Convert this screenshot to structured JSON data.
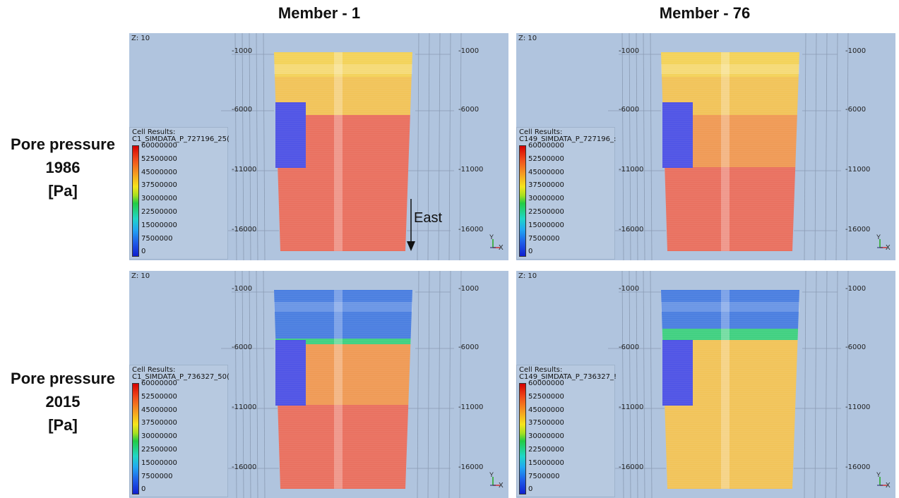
{
  "columns": [
    "Member - 1",
    "Member - 76"
  ],
  "rows": [
    {
      "line1": "Pore pressure",
      "line2": "1986",
      "line3": "[Pa]"
    },
    {
      "line1": "Pore pressure",
      "line2": "2015",
      "line3": "[Pa]"
    }
  ],
  "panels": [
    {
      "z_label": "Z: 10",
      "legend_title_1": "Cell Results:",
      "legend_title_2": "C1_SIMDATA_P_727196_25(",
      "scenario": "p1986_m1"
    },
    {
      "z_label": "Z: 10",
      "legend_title_1": "Cell Results:",
      "legend_title_2": "C149_SIMDATA_P_727196_:",
      "scenario": "p1986_m76"
    },
    {
      "z_label": "Z: 10",
      "legend_title_1": "Cell Results:",
      "legend_title_2": "C1_SIMDATA_P_736327_50(",
      "scenario": "p2015_m1"
    },
    {
      "z_label": "Z: 10",
      "legend_title_1": "Cell Results:",
      "legend_title_2": "C149_SIMDATA_P_736327_!",
      "scenario": "p2015_m76"
    }
  ],
  "legend_ticks": [
    "60000000",
    "52500000",
    "45000000",
    "37500000",
    "30000000",
    "22500000",
    "15000000",
    "7500000",
    "0"
  ],
  "axis_ticks": [
    "-1000",
    "-6000",
    "-11000",
    "-16000"
  ],
  "triad": {
    "x": "X",
    "y": "Y"
  },
  "annotation": {
    "east_label": "East"
  },
  "colors": {
    "panel_bg": "#b0c4de",
    "grid": "#8a9bb3",
    "high": "#e9705f",
    "mid_orange": "#ef9a55",
    "yellow": "#f3d259",
    "yellow_orange": "#f2c358",
    "blue_low": "#4a7ee0",
    "inset_blue": "#4f54e6",
    "green_band": "#40d080"
  }
}
